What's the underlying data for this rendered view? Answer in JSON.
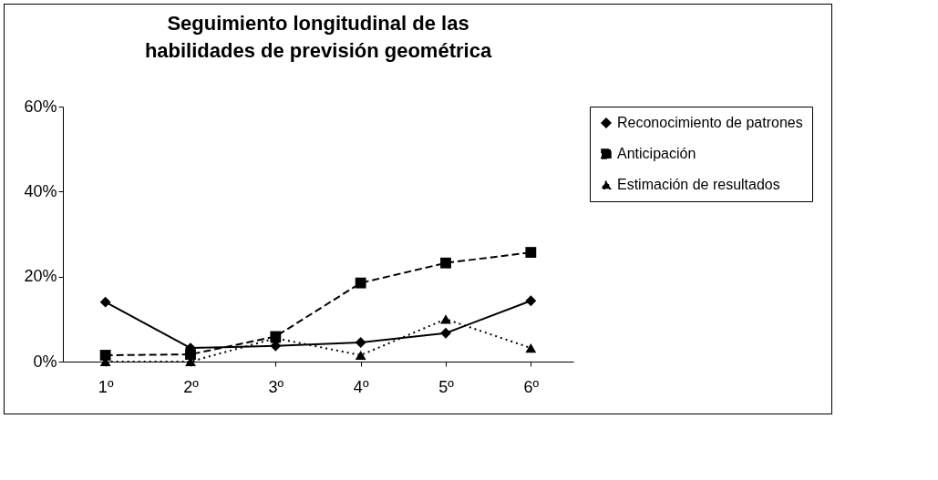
{
  "chart_data": {
    "type": "line",
    "title": "Seguimiento longitudinal de las habilidades de previsión geométrica",
    "categories": [
      "1º",
      "2º",
      "3º",
      "4º",
      "5º",
      "6º"
    ],
    "series": [
      {
        "name": "Reconocimiento de patrones",
        "color": "#000000",
        "marker": "diamond",
        "line_style": "solid",
        "values": [
          14,
          3.2,
          3.7,
          4.5,
          6.7,
          14.3
        ]
      },
      {
        "name": "Anticipación",
        "color": "#000000",
        "marker": "square",
        "line_style": "dashed",
        "values": [
          1.5,
          1.7,
          5.9,
          18.5,
          23.2,
          25.7
        ]
      },
      {
        "name": "Estimación de resultados",
        "color": "#000000",
        "marker": "triangle",
        "line_style": "dotted",
        "values": [
          0,
          0,
          5.5,
          1.5,
          10,
          3.2
        ]
      }
    ],
    "ylim": [
      0,
      60
    ],
    "yticks": [
      {
        "value": 0,
        "label": "0%"
      },
      {
        "value": 20,
        "label": "20%"
      },
      {
        "value": 40,
        "label": "40%"
      },
      {
        "value": 60,
        "label": "60%"
      }
    ],
    "grid": false,
    "legend": "right"
  }
}
